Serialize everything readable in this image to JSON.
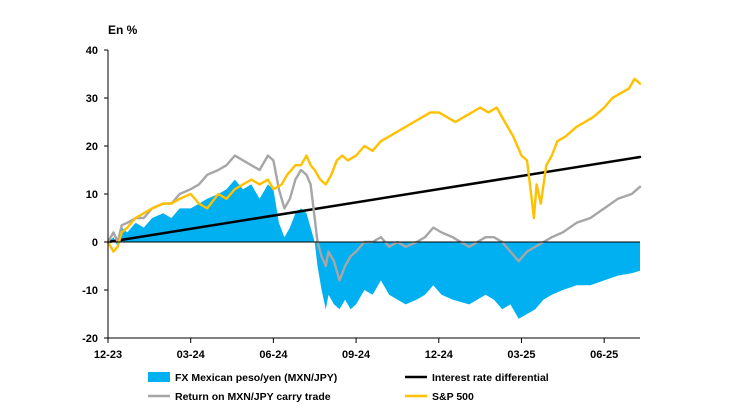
{
  "chart_data": {
    "type": "line",
    "unit_label": "En %",
    "x_ticks": [
      "12-23",
      "03-24",
      "06-24",
      "09-24",
      "12-24",
      "03-25",
      "06-25"
    ],
    "x_range_months": [
      0,
      19.3
    ],
    "ylim": [
      -20,
      40
    ],
    "y_ticks": [
      -20,
      -10,
      0,
      10,
      20,
      30,
      40
    ],
    "zero_line": true,
    "grid": false,
    "legend_position": "bottom",
    "series": [
      {
        "name": "FX Mexican peso/yen (MXN/JPY)",
        "kind": "area",
        "color": "#00B0F0",
        "points": [
          [
            0,
            0
          ],
          [
            0.2,
            1
          ],
          [
            0.35,
            -1
          ],
          [
            0.5,
            3
          ],
          [
            0.7,
            2
          ],
          [
            1,
            4
          ],
          [
            1.3,
            3
          ],
          [
            1.6,
            5
          ],
          [
            2,
            6
          ],
          [
            2.3,
            5
          ],
          [
            2.6,
            7
          ],
          [
            3,
            7
          ],
          [
            3.3,
            8
          ],
          [
            3.6,
            9
          ],
          [
            4,
            10
          ],
          [
            4.3,
            11
          ],
          [
            4.6,
            13
          ],
          [
            4.9,
            11
          ],
          [
            5.2,
            12
          ],
          [
            5.5,
            9
          ],
          [
            5.8,
            12
          ],
          [
            6,
            11
          ],
          [
            6.2,
            4
          ],
          [
            6.4,
            1
          ],
          [
            6.6,
            3
          ],
          [
            6.8,
            6
          ],
          [
            7,
            7
          ],
          [
            7.2,
            6
          ],
          [
            7.35,
            3
          ],
          [
            7.5,
            0
          ],
          [
            7.6,
            -5
          ],
          [
            7.75,
            -10
          ],
          [
            7.9,
            -14
          ],
          [
            8,
            -11
          ],
          [
            8.2,
            -13
          ],
          [
            8.4,
            -14
          ],
          [
            8.6,
            -12
          ],
          [
            8.8,
            -14
          ],
          [
            9,
            -13
          ],
          [
            9.3,
            -10
          ],
          [
            9.6,
            -11
          ],
          [
            9.9,
            -8
          ],
          [
            10.2,
            -11
          ],
          [
            10.5,
            -12
          ],
          [
            10.8,
            -13
          ],
          [
            11.2,
            -12
          ],
          [
            11.5,
            -11
          ],
          [
            11.8,
            -9
          ],
          [
            12.1,
            -11
          ],
          [
            12.5,
            -12
          ],
          [
            12.8,
            -12.5
          ],
          [
            13.1,
            -13
          ],
          [
            13.4,
            -12
          ],
          [
            13.7,
            -11
          ],
          [
            14,
            -12
          ],
          [
            14.3,
            -14
          ],
          [
            14.6,
            -13
          ],
          [
            14.9,
            -16
          ],
          [
            15.2,
            -15
          ],
          [
            15.5,
            -14
          ],
          [
            15.8,
            -12
          ],
          [
            16.1,
            -11
          ],
          [
            16.5,
            -10
          ],
          [
            17,
            -9
          ],
          [
            17.5,
            -9
          ],
          [
            18,
            -8
          ],
          [
            18.5,
            -7
          ],
          [
            19,
            -6.5
          ],
          [
            19.3,
            -6
          ]
        ]
      },
      {
        "name": "Interest rate differential",
        "kind": "line",
        "color": "#000000",
        "points": [
          [
            0,
            0
          ],
          [
            19.3,
            17.7
          ]
        ]
      },
      {
        "name": "Return on MXN/JPY carry trade",
        "kind": "line",
        "color": "#A6A6A6",
        "points": [
          [
            0,
            0
          ],
          [
            0.2,
            2
          ],
          [
            0.35,
            0
          ],
          [
            0.5,
            3.5
          ],
          [
            0.7,
            4
          ],
          [
            1,
            5
          ],
          [
            1.3,
            5
          ],
          [
            1.6,
            7
          ],
          [
            2,
            8
          ],
          [
            2.3,
            8
          ],
          [
            2.6,
            10
          ],
          [
            3,
            11
          ],
          [
            3.3,
            12
          ],
          [
            3.6,
            14
          ],
          [
            4,
            15
          ],
          [
            4.3,
            16
          ],
          [
            4.6,
            18
          ],
          [
            4.9,
            17
          ],
          [
            5.2,
            16
          ],
          [
            5.5,
            15
          ],
          [
            5.8,
            18
          ],
          [
            6,
            17
          ],
          [
            6.2,
            11
          ],
          [
            6.4,
            7
          ],
          [
            6.6,
            9
          ],
          [
            6.8,
            13
          ],
          [
            7,
            15
          ],
          [
            7.2,
            14
          ],
          [
            7.35,
            12
          ],
          [
            7.5,
            5
          ],
          [
            7.6,
            0
          ],
          [
            7.75,
            -3
          ],
          [
            7.9,
            -5
          ],
          [
            8,
            -2
          ],
          [
            8.2,
            -4
          ],
          [
            8.4,
            -8
          ],
          [
            8.6,
            -5
          ],
          [
            8.8,
            -3
          ],
          [
            9,
            -2
          ],
          [
            9.3,
            0
          ],
          [
            9.6,
            0
          ],
          [
            9.9,
            1
          ],
          [
            10.2,
            -1
          ],
          [
            10.5,
            0
          ],
          [
            10.8,
            -1
          ],
          [
            11.2,
            0
          ],
          [
            11.5,
            1
          ],
          [
            11.8,
            3
          ],
          [
            12.1,
            2
          ],
          [
            12.5,
            1
          ],
          [
            12.8,
            0
          ],
          [
            13.1,
            -1
          ],
          [
            13.4,
            0
          ],
          [
            13.7,
            1
          ],
          [
            14,
            1
          ],
          [
            14.3,
            0
          ],
          [
            14.6,
            -2
          ],
          [
            14.9,
            -4
          ],
          [
            15.2,
            -2
          ],
          [
            15.5,
            -1
          ],
          [
            15.8,
            0
          ],
          [
            16.1,
            1
          ],
          [
            16.5,
            2
          ],
          [
            17,
            4
          ],
          [
            17.5,
            5
          ],
          [
            18,
            7
          ],
          [
            18.5,
            9
          ],
          [
            19,
            10
          ],
          [
            19.3,
            11.5
          ]
        ]
      },
      {
        "name": "S&P 500",
        "kind": "line",
        "color": "#FFC000",
        "points": [
          [
            0,
            0
          ],
          [
            0.2,
            -2
          ],
          [
            0.35,
            -1
          ],
          [
            0.5,
            2
          ],
          [
            0.7,
            3
          ],
          [
            1,
            5
          ],
          [
            1.3,
            6
          ],
          [
            1.6,
            7
          ],
          [
            2,
            8
          ],
          [
            2.3,
            8
          ],
          [
            2.6,
            9
          ],
          [
            3,
            10
          ],
          [
            3.3,
            8
          ],
          [
            3.6,
            7
          ],
          [
            4,
            10
          ],
          [
            4.3,
            9
          ],
          [
            4.6,
            11
          ],
          [
            4.9,
            12
          ],
          [
            5.2,
            13
          ],
          [
            5.5,
            12
          ],
          [
            5.8,
            13
          ],
          [
            6,
            11
          ],
          [
            6.3,
            12
          ],
          [
            6.5,
            14
          ],
          [
            6.8,
            16
          ],
          [
            7,
            16
          ],
          [
            7.2,
            18
          ],
          [
            7.35,
            16
          ],
          [
            7.5,
            15
          ],
          [
            7.7,
            13
          ],
          [
            7.9,
            12
          ],
          [
            8.1,
            14
          ],
          [
            8.3,
            17
          ],
          [
            8.5,
            18
          ],
          [
            8.7,
            17
          ],
          [
            9,
            18
          ],
          [
            9.3,
            20
          ],
          [
            9.6,
            19
          ],
          [
            9.9,
            21
          ],
          [
            10.2,
            22
          ],
          [
            10.5,
            23
          ],
          [
            10.8,
            24
          ],
          [
            11.1,
            25
          ],
          [
            11.4,
            26
          ],
          [
            11.7,
            27
          ],
          [
            12,
            27
          ],
          [
            12.3,
            26
          ],
          [
            12.6,
            25
          ],
          [
            12.9,
            26
          ],
          [
            13.2,
            27
          ],
          [
            13.5,
            28
          ],
          [
            13.8,
            27
          ],
          [
            14.1,
            28
          ],
          [
            14.4,
            25
          ],
          [
            14.7,
            22
          ],
          [
            15,
            18
          ],
          [
            15.2,
            17
          ],
          [
            15.35,
            10
          ],
          [
            15.45,
            5
          ],
          [
            15.55,
            12
          ],
          [
            15.7,
            8
          ],
          [
            15.9,
            16
          ],
          [
            16.1,
            18
          ],
          [
            16.3,
            21
          ],
          [
            16.6,
            22
          ],
          [
            17,
            24
          ],
          [
            17.3,
            25
          ],
          [
            17.6,
            26
          ],
          [
            18,
            28
          ],
          [
            18.3,
            30
          ],
          [
            18.6,
            31
          ],
          [
            18.9,
            32
          ],
          [
            19.1,
            34
          ],
          [
            19.3,
            33
          ]
        ]
      }
    ]
  },
  "legend": [
    {
      "label": "FX Mexican peso/yen (MXN/JPY)",
      "color": "#00B0F0",
      "kind": "area"
    },
    {
      "label": "Interest rate differential",
      "color": "#000000",
      "kind": "line"
    },
    {
      "label": "Return on MXN/JPY carry trade",
      "color": "#A6A6A6",
      "kind": "line"
    },
    {
      "label": "S&P 500",
      "color": "#FFC000",
      "kind": "line"
    }
  ]
}
